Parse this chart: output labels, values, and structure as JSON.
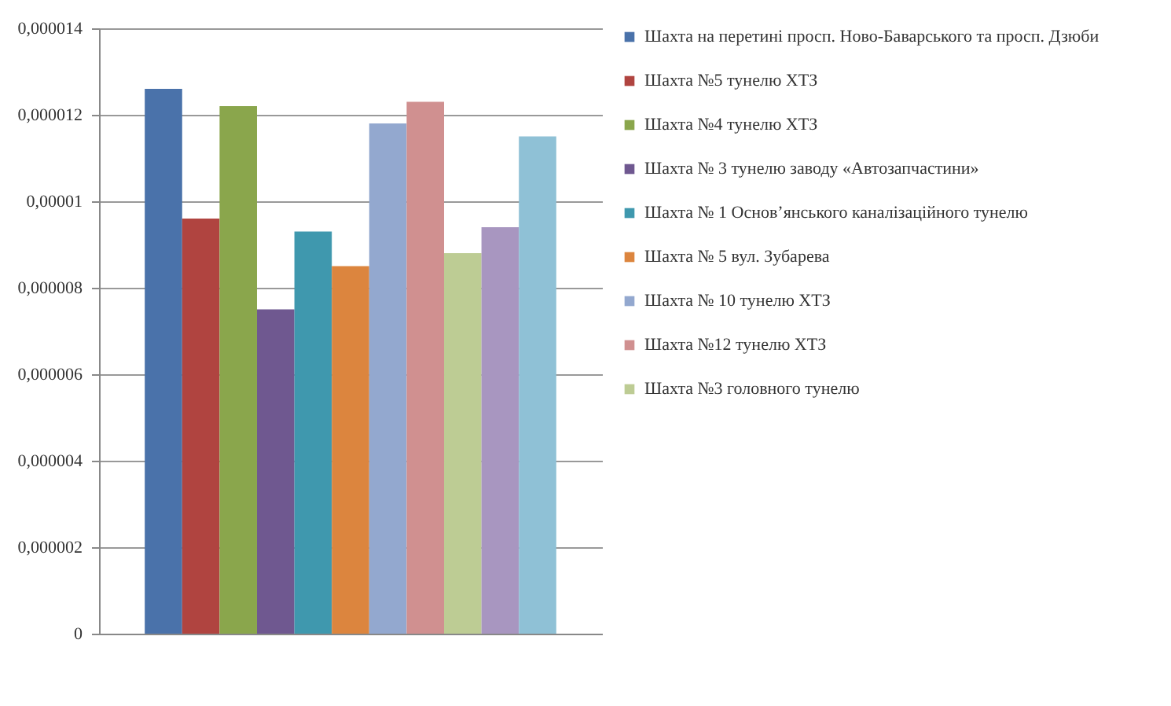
{
  "chart_data": {
    "type": "bar",
    "categories": [
      null
    ],
    "series": [
      {
        "name": "Шахта на перетині просп. Ново-Баварського та просп. Дзюби",
        "color": "#4a72aa",
        "values": [
          1.26e-05
        ]
      },
      {
        "name": "Шахта №5 тунелю ХТЗ",
        "color": "#b04440",
        "values": [
          9.6e-06
        ]
      },
      {
        "name": "Шахта №4 тунелю ХТЗ",
        "color": "#8aa64c",
        "values": [
          1.22e-05
        ]
      },
      {
        "name": "Шахта № 3 тунелю заводу «Автозапчастини»",
        "color": "#6f5890",
        "values": [
          7.5e-06
        ]
      },
      {
        "name": "Шахта № 1 Основʼянського каналізаційного тунелю",
        "color": "#3f98ae",
        "values": [
          9.3e-06
        ]
      },
      {
        "name": "Шахта № 5 вул. Зубарева",
        "color": "#dc853e",
        "values": [
          8.5e-06
        ]
      },
      {
        "name": "Шахта № 10 тунелю ХТЗ",
        "color": "#93a8cf",
        "values": [
          1.18e-05
        ]
      },
      {
        "name": "Шахта №12 тунелю ХТЗ",
        "color": "#d09090",
        "values": [
          1.23e-05
        ]
      },
      {
        "name": "Шахта №3 головного тунелю",
        "color": "#bdcc94",
        "values": [
          8.8e-06
        ]
      },
      {
        "color": "#a896c0",
        "values": [
          9.4e-06
        ]
      },
      {
        "color": "#8fc1d6",
        "values": [
          1.15e-05
        ]
      }
    ],
    "ylim": [
      0,
      1.4e-05
    ],
    "yticks": [
      0,
      {
        "value": 2e-06,
        "label": "0,000002"
      },
      {
        "value": 4e-06,
        "label": "0,000004"
      },
      {
        "value": 6e-06,
        "label": "0,000006"
      },
      {
        "value": 8e-06,
        "label": "0,000008"
      },
      {
        "value": 1e-05,
        "label": "0,00001"
      },
      {
        "value": 1.2e-05,
        "label": "0,000012"
      },
      {
        "value": 1.4e-05,
        "label": "0,000014"
      }
    ],
    "grid": "y",
    "legend": "right"
  }
}
